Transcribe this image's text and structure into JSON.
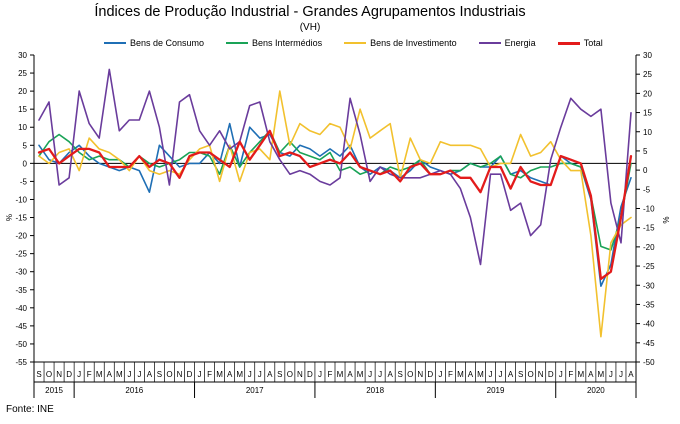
{
  "title": "Índices de Produção Industrial - Grandes Agrupamentos Industriais",
  "subtitle": "(VH)",
  "source": "Fonte: INE",
  "colors": {
    "bens_consumo": "#1f6fb5",
    "bens_intermedios": "#1aa357",
    "bens_investimento": "#f2c12e",
    "energia": "#6a3c9c",
    "total": "#e31b1b"
  },
  "chart_data": {
    "type": "line",
    "ylabel_left": "%",
    "ylabel_right": "%",
    "ylim": [
      -55,
      30
    ],
    "yticks": [
      -55,
      -50,
      -45,
      -40,
      -35,
      -30,
      -25,
      -20,
      -15,
      -10,
      -5,
      0,
      5,
      10,
      15,
      20,
      25,
      30
    ],
    "ylim_right": [
      -50,
      30
    ],
    "yticks_right": [
      -50,
      -45,
      -40,
      -35,
      -30,
      -25,
      -20,
      -15,
      -10,
      -5,
      0,
      5,
      10,
      15,
      20,
      25,
      30
    ],
    "grid": false,
    "legend_position": "top",
    "month_labels": [
      "S",
      "O",
      "N",
      "D",
      "J",
      "F",
      "M",
      "A",
      "M",
      "J",
      "J",
      "A",
      "S",
      "O",
      "N",
      "D",
      "J",
      "F",
      "M",
      "A",
      "M",
      "J",
      "J",
      "A",
      "S",
      "O",
      "N",
      "D",
      "J",
      "F",
      "M",
      "A",
      "M",
      "J",
      "J",
      "A",
      "S",
      "O",
      "N",
      "D",
      "J",
      "F",
      "M",
      "A",
      "M",
      "J",
      "J",
      "A",
      "S",
      "O",
      "N",
      "D",
      "J",
      "F",
      "M",
      "A",
      "M",
      "J",
      "J",
      "A"
    ],
    "x": [
      "2015-09",
      "2015-10",
      "2015-11",
      "2015-12",
      "2016-01",
      "2016-02",
      "2016-03",
      "2016-04",
      "2016-05",
      "2016-06",
      "2016-07",
      "2016-08",
      "2016-09",
      "2016-10",
      "2016-11",
      "2016-12",
      "2017-01",
      "2017-02",
      "2017-03",
      "2017-04",
      "2017-05",
      "2017-06",
      "2017-07",
      "2017-08",
      "2017-09",
      "2017-10",
      "2017-11",
      "2017-12",
      "2018-01",
      "2018-02",
      "2018-03",
      "2018-04",
      "2018-05",
      "2018-06",
      "2018-07",
      "2018-08",
      "2018-09",
      "2018-10",
      "2018-11",
      "2018-12",
      "2019-01",
      "2019-02",
      "2019-03",
      "2019-04",
      "2019-05",
      "2019-06",
      "2019-07",
      "2019-08",
      "2019-09",
      "2019-10",
      "2019-11",
      "2019-12",
      "2020-01",
      "2020-02",
      "2020-03",
      "2020-04",
      "2020-05",
      "2020-06",
      "2020-07",
      "2020-08"
    ],
    "year_labels": [
      {
        "label": "2015",
        "start": 0,
        "end": 3
      },
      {
        "label": "2016",
        "start": 4,
        "end": 15
      },
      {
        "label": "2017",
        "start": 16,
        "end": 27
      },
      {
        "label": "2018",
        "start": 28,
        "end": 39
      },
      {
        "label": "2019",
        "start": 40,
        "end": 51
      },
      {
        "label": "2020",
        "start": 52,
        "end": 59
      }
    ],
    "series": [
      {
        "name": "Bens de Consumo",
        "color_key": "bens_consumo",
        "width": 1.6,
        "values": [
          5,
          1,
          0,
          3,
          5,
          2,
          0,
          -1,
          -2,
          -1,
          -2,
          -8,
          5,
          2,
          -1,
          0,
          0,
          3,
          0,
          11,
          -1,
          10,
          7,
          8,
          3,
          2,
          5,
          4,
          2,
          4,
          2,
          5,
          -1,
          -3,
          -1,
          -2,
          -4,
          -2,
          1,
          -1,
          -2,
          -3,
          -2,
          0,
          -1,
          -1,
          2,
          -3,
          -2,
          -4,
          -5,
          -6,
          2,
          0,
          -1,
          -10,
          -34,
          -28,
          -12,
          -4
        ]
      },
      {
        "name": "Bens Intermédios",
        "color_key": "bens_intermedios",
        "width": 1.6,
        "values": [
          2,
          6,
          8,
          6,
          3,
          1,
          2,
          1,
          1,
          -1,
          2,
          0,
          -1,
          0,
          1,
          3,
          3,
          2,
          -3,
          5,
          -1,
          3,
          6,
          9,
          3,
          6,
          3,
          2,
          1,
          3,
          -2,
          -1,
          -3,
          -2,
          -3,
          -1,
          -2,
          -1,
          1,
          -3,
          -3,
          -2,
          -2,
          0,
          -1,
          0,
          2,
          -3,
          -4,
          -2,
          -1,
          -1,
          0,
          0,
          -1,
          -9,
          -23,
          -24,
          -15,
          0
        ]
      },
      {
        "name": "Bens de Investimento",
        "color_key": "bens_investimento",
        "width": 1.6,
        "values": [
          2,
          0,
          3,
          4,
          -2,
          7,
          4,
          3,
          1,
          -2,
          2,
          -2,
          -3,
          -2,
          -3,
          1,
          4,
          5,
          -5,
          5,
          -5,
          3,
          4,
          1,
          20,
          5,
          11,
          9,
          8,
          11,
          10,
          4,
          15,
          7,
          9,
          11,
          -4,
          7,
          1,
          0,
          6,
          5,
          5,
          5,
          4,
          -1,
          0,
          0,
          8,
          2,
          3,
          6,
          1,
          -2,
          -2,
          -20,
          -48,
          -22,
          -17,
          -15
        ]
      },
      {
        "name": "Energia",
        "color_key": "energia",
        "width": 1.6,
        "values": [
          12,
          17,
          -6,
          -4,
          20,
          11,
          7,
          26,
          9,
          12,
          12,
          20,
          10,
          -6,
          17,
          19,
          9,
          5,
          9,
          4,
          6,
          16,
          17,
          6,
          1,
          -3,
          -2,
          -3,
          -5,
          -6,
          -4,
          18,
          8,
          -5,
          -1,
          -3,
          -4,
          -4,
          -4,
          -3,
          -2,
          -3,
          -7,
          -15,
          -28,
          -3,
          -3,
          -13,
          -11,
          -20,
          -17,
          1,
          10,
          18,
          15,
          13,
          15,
          -11,
          -22,
          14
        ]
      },
      {
        "name": "Total",
        "color_key": "total",
        "width": 2.3,
        "values": [
          3,
          4,
          0,
          2,
          4,
          4,
          3,
          -1,
          -1,
          -1,
          2,
          -1,
          1,
          0,
          -4,
          2,
          3,
          3,
          1,
          -1,
          6,
          1,
          5,
          9,
          2,
          3,
          2,
          -1,
          0,
          1,
          0,
          3,
          -1,
          -2,
          -3,
          -2,
          -5,
          -1,
          0,
          -3,
          -3,
          -2,
          -4,
          -4,
          -8,
          -1,
          -1,
          -7,
          -1,
          -5,
          -6,
          -6,
          2,
          1,
          0,
          -9,
          -32,
          -30,
          -15,
          2
        ]
      }
    ]
  }
}
